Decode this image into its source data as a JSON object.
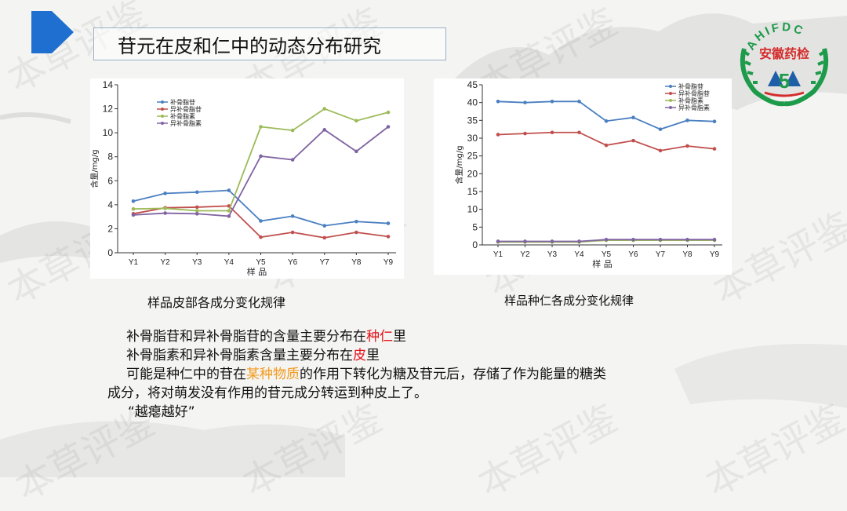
{
  "slide": {
    "title": "苷元在皮和仁中的动态分布研究",
    "logo_arc_text": "AHIFDC",
    "logo_name": "安徽药检",
    "logo_numeral": "5",
    "watermark": "本草评鉴",
    "caption_left": "样品皮部各成分变化规律",
    "caption_right": "样品种仁各成分变化规律",
    "para1_a": "补骨脂苷和异补骨脂苷的含量主要分布在",
    "para1_red": "种仁",
    "para1_b": "里",
    "para2_a": "补骨脂素和异补骨脂素含量主要分布在",
    "para2_red": "皮",
    "para2_b": "里",
    "para3_a": "可能是种仁中的苷在",
    "para3_orange": "某种物质",
    "para3_b": "的作用下转化为糖及苷元后，存储了作为能量的糖类",
    "para4": "成分，将对萌发没有作用的苷元成分转运到种皮上了。",
    "para5": "“越瘪越好”"
  },
  "colors": {
    "series": [
      "#4a7fc1",
      "#c0504d",
      "#9bbb59",
      "#8064a2"
    ],
    "highlight_red": "#e3121a",
    "highlight_orange": "#f39a1e",
    "logo_green": "#1d9a4a",
    "logo_red": "#d42b2b",
    "logo_blue": "#1f5fa8",
    "corner_blue": "#1f6fd0"
  },
  "chart_data": [
    {
      "type": "line",
      "xlabel": "样 品",
      "ylabel": "含量/mg/g",
      "categories": [
        "Y1",
        "Y2",
        "Y3",
        "Y4",
        "Y5",
        "Y6",
        "Y7",
        "Y8",
        "Y9"
      ],
      "ylim": [
        0,
        14
      ],
      "yticks": [
        0,
        2,
        4,
        6,
        8,
        10,
        12,
        14
      ],
      "legend_position": "top-left",
      "series": [
        {
          "name": "补骨脂苷",
          "values": [
            4.3,
            4.95,
            5.05,
            5.2,
            2.65,
            3.05,
            2.25,
            2.6,
            2.45
          ]
        },
        {
          "name": "异补骨脂苷",
          "values": [
            3.25,
            3.75,
            3.8,
            3.9,
            1.3,
            1.7,
            1.25,
            1.7,
            1.35
          ]
        },
        {
          "name": "补骨脂素",
          "values": [
            3.65,
            3.7,
            3.5,
            3.5,
            10.5,
            10.2,
            12.0,
            11.0,
            11.7
          ]
        },
        {
          "name": "异补骨脂素",
          "values": [
            3.15,
            3.3,
            3.25,
            3.05,
            8.05,
            7.75,
            10.25,
            8.45,
            10.5
          ]
        }
      ]
    },
    {
      "type": "line",
      "xlabel": "样 品",
      "ylabel": "含量/mg/g",
      "categories": [
        "Y1",
        "Y2",
        "Y3",
        "Y4",
        "Y5",
        "Y6",
        "Y7",
        "Y8",
        "Y9"
      ],
      "ylim": [
        0,
        45
      ],
      "yticks": [
        0,
        5,
        10,
        15,
        20,
        25,
        30,
        35,
        40,
        45
      ],
      "legend_position": "top-right",
      "series": [
        {
          "name": "补骨脂苷",
          "values": [
            40.3,
            40.0,
            40.3,
            40.3,
            34.8,
            35.8,
            32.5,
            35.0,
            34.7
          ]
        },
        {
          "name": "异补骨脂苷",
          "values": [
            31.0,
            31.3,
            31.6,
            31.6,
            28.0,
            29.3,
            26.5,
            27.8,
            27.0
          ]
        },
        {
          "name": "补骨脂素",
          "values": [
            0.8,
            0.8,
            0.8,
            0.8,
            1.3,
            1.3,
            1.3,
            1.3,
            1.3
          ]
        },
        {
          "name": "异补骨脂素",
          "values": [
            1.0,
            1.0,
            1.0,
            1.0,
            1.5,
            1.5,
            1.5,
            1.5,
            1.5
          ]
        }
      ]
    }
  ]
}
